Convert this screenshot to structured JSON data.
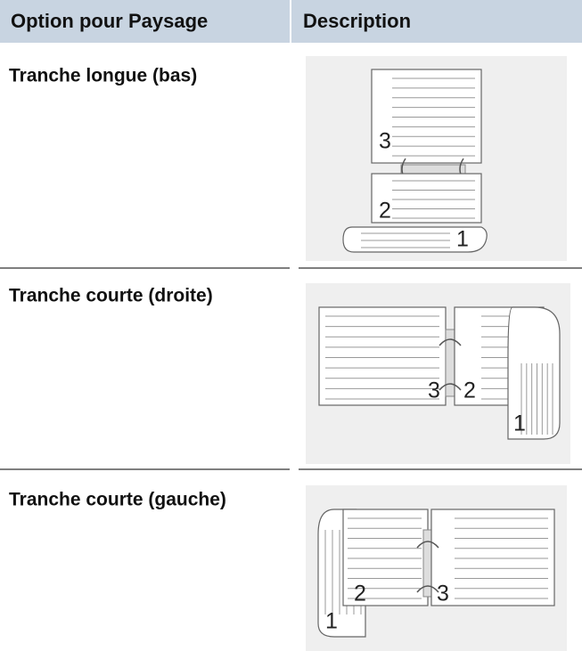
{
  "header": [
    "Option pour Paysage",
    "Description"
  ],
  "rows": [
    {
      "label": "Tranche longue (bas)",
      "pages": [
        3,
        2,
        1
      ]
    },
    {
      "label": "Tranche courte (droite)",
      "pages": [
        3,
        2,
        1
      ]
    },
    {
      "label": "Tranche courte (gauche)",
      "pages": [
        2,
        3,
        1
      ]
    }
  ]
}
